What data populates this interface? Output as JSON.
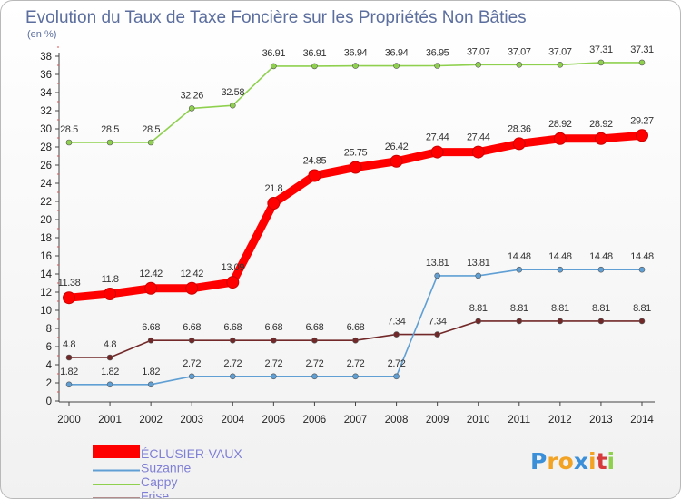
{
  "chart_data": {
    "type": "line",
    "title": "Evolution du Taux de Taxe Foncière sur les Propriétés Non Bâties",
    "subtitle": "(en %)",
    "ylim": [
      0,
      38
    ],
    "yticks": [
      0,
      2,
      4,
      6,
      8,
      10,
      12,
      14,
      16,
      18,
      20,
      22,
      24,
      26,
      28,
      30,
      32,
      34,
      36,
      38
    ],
    "categories": [
      "2000",
      "2001",
      "2002",
      "2003",
      "2004",
      "2005",
      "2006",
      "2007",
      "2008",
      "2009",
      "2010",
      "2011",
      "2012",
      "2013",
      "2014"
    ],
    "series": [
      {
        "name": "Cappy",
        "color": "#8fd14f",
        "values": [
          28.5,
          28.5,
          28.5,
          32.26,
          32.58,
          36.91,
          36.91,
          36.94,
          36.94,
          36.95,
          37.07,
          37.07,
          37.07,
          37.31,
          37.31
        ],
        "labels": [
          "28.5",
          "28.5",
          "28.5",
          "32.26",
          "32.58",
          "36.91",
          "36.91",
          "36.94",
          "36.94",
          "36.95",
          "37.07",
          "37.07",
          "37.07",
          "37.31",
          "37.31"
        ]
      },
      {
        "name": "Frise",
        "color": "#722828",
        "values": [
          4.8,
          4.8,
          6.68,
          6.68,
          6.68,
          6.68,
          6.68,
          6.68,
          7.34,
          7.34,
          8.81,
          8.81,
          8.81,
          8.81,
          8.81
        ],
        "labels": [
          "4.8",
          "4.8",
          "6.68",
          "6.68",
          "6.68",
          "6.68",
          "6.68",
          "6.68",
          "7.34",
          "7.34",
          "8.81",
          "8.81",
          "8.81",
          "8.81",
          "8.81"
        ]
      },
      {
        "name": "Suzanne",
        "color": "#5f9fd4",
        "values": [
          1.82,
          1.82,
          1.82,
          2.72,
          2.72,
          2.72,
          2.72,
          2.72,
          2.72,
          13.81,
          13.81,
          14.48,
          14.48,
          14.48,
          14.48
        ],
        "labels": [
          "1.82",
          "1.82",
          "1.82",
          "2.72",
          "2.72",
          "2.72",
          "2.72",
          "2.72",
          "2.72",
          "13.81",
          "13.81",
          "14.48",
          "14.48",
          "14.48",
          "14.48"
        ]
      },
      {
        "name": "ÉCLUSIER-VAUX",
        "color": "#ff0000",
        "values": [
          11.38,
          11.8,
          12.42,
          12.42,
          13.09,
          21.8,
          24.85,
          25.75,
          26.42,
          27.44,
          27.44,
          28.36,
          28.92,
          28.92,
          29.27
        ],
        "labels": [
          "11.38",
          "11.8",
          "12.42",
          "12.42",
          "13.09",
          "21.8",
          "24.85",
          "25.75",
          "26.42",
          "27.44",
          "27.44",
          "28.36",
          "28.92",
          "28.92",
          "29.27"
        ]
      }
    ],
    "legend": [
      "ÉCLUSIER-VAUX",
      "Suzanne",
      "Cappy",
      "Frise"
    ],
    "grid": false,
    "legend_position": "bottom-left"
  },
  "logo": {
    "letters": [
      "P",
      "r",
      "o",
      "x",
      "i",
      "t",
      "i"
    ],
    "colors": [
      "#3b8fd8",
      "#f2a324",
      "#f2a324",
      "#3b8fd8",
      "#f2a324",
      "#d63a3a",
      "#8fd14f"
    ]
  }
}
